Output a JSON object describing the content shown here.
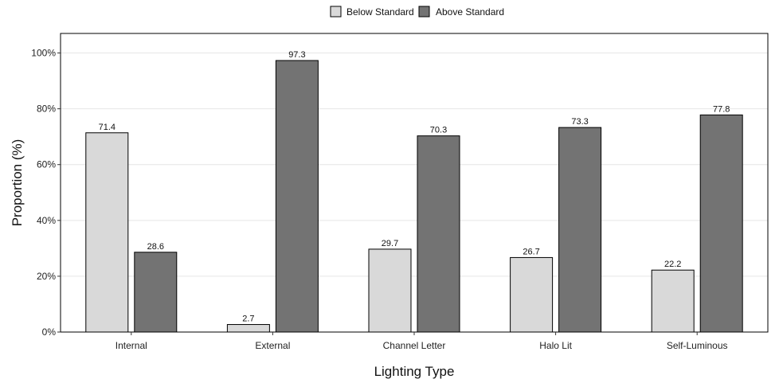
{
  "chart_data": {
    "type": "bar",
    "categories": [
      "Internal",
      "External",
      "Channel Letter",
      "Halo Lit",
      "Self-Luminous"
    ],
    "series": [
      {
        "name": "Below Standard",
        "color": "#d9d9d9",
        "values": [
          71.4,
          2.7,
          29.7,
          26.7,
          22.2
        ]
      },
      {
        "name": "Above Standard",
        "color": "#737373",
        "values": [
          28.6,
          97.3,
          70.3,
          73.3,
          77.8
        ]
      }
    ],
    "xlabel": "Lighting Type",
    "ylabel": "Proportion (%)",
    "ylim": [
      0,
      107
    ],
    "yticks": [
      0,
      20,
      40,
      60,
      80,
      100
    ],
    "ytick_labels": [
      "0%",
      "20%",
      "40%",
      "60%",
      "80%",
      "100%"
    ],
    "grid": "horizontal",
    "legend_position": "top-center"
  }
}
